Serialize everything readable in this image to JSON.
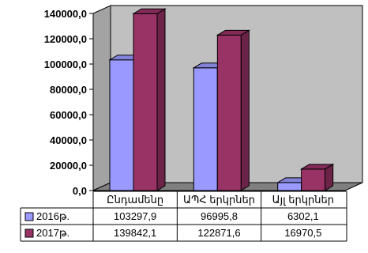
{
  "chart_data": {
    "type": "bar",
    "categories": [
      "Ընդամենը",
      "ԱՊՀ երկրներ",
      "Այլ երկրներ"
    ],
    "series": [
      {
        "name": "2016թ.",
        "values": [
          103297.9,
          96995.8,
          6302.1
        ],
        "color": "#9999ff",
        "labels": [
          "103297,9",
          "96995,8",
          "6302,1"
        ]
      },
      {
        "name": "2017թ.",
        "values": [
          139842.1,
          122871.6,
          16970.5
        ],
        "color": "#993366",
        "labels": [
          "139842,1",
          "122871,6",
          "16970,5"
        ]
      }
    ],
    "ylim": [
      0,
      140000
    ],
    "yticks": [
      "0,0",
      "20000,0",
      "40000,0",
      "60000,0",
      "80000,0",
      "100000,0",
      "120000,0",
      "140000,0"
    ],
    "grid": false,
    "legend": "data-table",
    "wall_color": "#c0c0c0",
    "floor_color": "#808080"
  }
}
